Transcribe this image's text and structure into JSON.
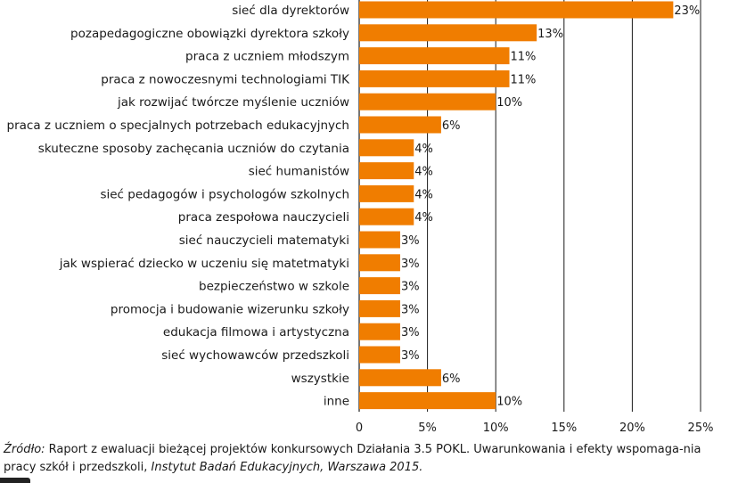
{
  "chart_data": {
    "type": "bar",
    "orientation": "horizontal",
    "categories": [
      "sieć dla dyrektorów",
      "pozapedagogiczne obowiązki dyrektora szkoły",
      "praca z uczniem młodszym",
      "praca z nowoczesnymi technologiami TIK",
      "jak rozwijać twórcze myślenie uczniów",
      "praca z uczniem o specjalnych potrzebach edukacyjnych",
      "skuteczne sposoby zachęcania uczniów do czytania",
      "sieć humanistów",
      "sieć pedagogów i psychologów szkolnych",
      "praca zespołowa nauczycieli",
      "sieć nauczycieli matematyki",
      "jak wspierać dziecko w uczeniu się matetmatyki",
      "bezpieczeństwo w szkole",
      "promocja i budowanie wizerunku szkoły",
      "edukacja filmowa i artystyczna",
      "sieć wychowawców przedszkoli",
      "wszystkie",
      "inne"
    ],
    "values": [
      23,
      13,
      11,
      11,
      10,
      6,
      4,
      4,
      4,
      4,
      3,
      3,
      3,
      3,
      3,
      3,
      6,
      10
    ],
    "value_labels": [
      "23%",
      "13%",
      "11%",
      "11%",
      "10%",
      "6%",
      "4%",
      "4%",
      "4%",
      "4%",
      "3%",
      "3%",
      "3%",
      "3%",
      "3%",
      "3%",
      "6%",
      "10%"
    ],
    "xlim": [
      0,
      25
    ],
    "x_ticks": [
      0,
      5,
      10,
      15,
      20,
      25
    ],
    "x_tick_labels": [
      "0",
      "5%",
      "10%",
      "15%",
      "20%",
      "25%"
    ],
    "grid": "vertical",
    "bar_color": "#F07D00",
    "grid_color": "#1a1a1a"
  },
  "source": {
    "prefix": "Źródło:",
    "text": " Raport z ewaluacji bieżącej projektów konkursowych Działania 3.5 POKL. Uwarunkowania i efekty wspomaga-nia pracy szkół i przedszkoli, ",
    "publisher": "Instytut Badań Edukacyjnych, Warszawa 2015."
  }
}
